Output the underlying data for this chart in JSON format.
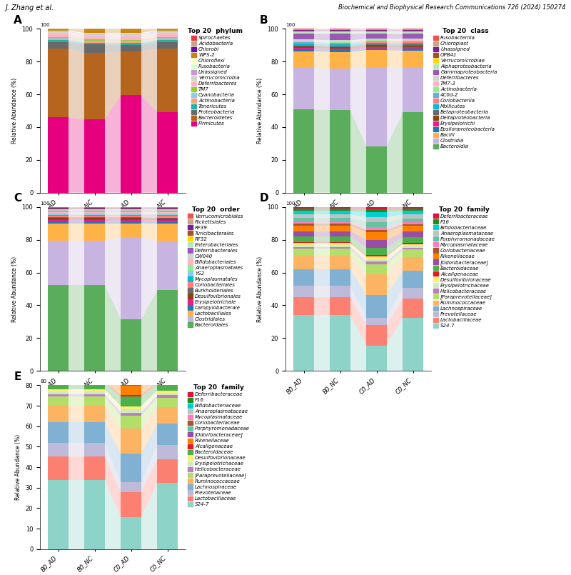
{
  "groups": [
    "B0_AD",
    "B0_NC",
    "C0_AD",
    "C0_NC"
  ],
  "header_left": "J. Zhang et al.",
  "header_right": "Biochemical and Biophysical Research Communications 726 (2024) 150274",
  "phylum_names": [
    "Firmicutes",
    "Bacteroidetes",
    "Proteobacteria",
    "Tenericutes",
    "Actinobacteria",
    "Cyanobacteria",
    "TM7",
    "Deferribacteres",
    "Verrucomicrobia",
    "Unassigned",
    "Fusobacteria",
    "Chioroflexi",
    "WPS-2",
    "Chiorobi",
    "Acidobacteria",
    "Spirochaetes"
  ],
  "phylum_colors": [
    "#e6007e",
    "#b5651d",
    "#696969",
    "#20b2aa",
    "#ffa07a",
    "#87ceeb",
    "#9acd32",
    "#ffb6c1",
    "#d3d3d3",
    "#cc99cc",
    "#d3ffd3",
    "#fffacd",
    "#c8860a",
    "#6a0dad",
    "#c8a882",
    "#e63946"
  ],
  "phylum_vals": {
    "B0_AD": [
      46,
      42,
      4,
      1,
      1,
      0.5,
      0.5,
      2,
      1,
      0.5,
      0.3,
      0.2,
      0.5,
      0.1,
      0.3,
      0.1
    ],
    "B0_NC": [
      44,
      40,
      5,
      1,
      1,
      0.5,
      0.5,
      2,
      1,
      0.5,
      0.3,
      0.2,
      2,
      0.1,
      0.3,
      0.1
    ],
    "C0_AD": [
      58,
      26,
      4,
      1,
      1,
      0.5,
      0.5,
      2,
      1,
      0.5,
      0.3,
      0.2,
      2,
      0.1,
      0.3,
      0.1
    ],
    "C0_NC": [
      49,
      39,
      4,
      1,
      1,
      0.5,
      0.5,
      2,
      1,
      0.5,
      0.3,
      0.2,
      0.5,
      0.1,
      0.3,
      0.1
    ]
  },
  "class_names": [
    "Bacteroidia",
    "Clostridia",
    "Bacilli",
    "Epsilonproteobacteria",
    "Erysipeloirichi",
    "Deltaproteobacteria",
    "Betaproteobacteria",
    "Mollicutes",
    "Coriobacteriia",
    "4C0d-2",
    "Actinobacteria",
    "TM7-3",
    "Deferribacteres",
    "Gammaproteobacteria",
    "Alphaproteobacteria",
    "Verrucomicrobiae",
    "OPB41",
    "Unassigned",
    "Chloroplast",
    "Fusobacterilia"
  ],
  "class_colors": [
    "#5aad5a",
    "#c8b4e0",
    "#ffb347",
    "#1f77b4",
    "#e91e8c",
    "#8b4513",
    "#696969",
    "#00bcd4",
    "#ff7f7f",
    "#6baed6",
    "#90ee90",
    "#ffb6c1",
    "#d3d3d3",
    "#9b59b6",
    "#b5e8b5",
    "#ffd700",
    "#a0522d",
    "#7b1fa2",
    "#c8a882",
    "#ef5350"
  ],
  "class_vals": {
    "B0_AD": [
      50,
      25,
      10,
      1,
      1,
      1,
      0.5,
      1,
      0.5,
      0.5,
      0.5,
      0.5,
      0.5,
      3.5,
      1,
      0.5,
      0.3,
      0.3,
      0.5,
      0.4
    ],
    "B0_NC": [
      50,
      25,
      10,
      1,
      1,
      1,
      0.5,
      1,
      0.5,
      0.5,
      0.5,
      0.5,
      0.5,
      4,
      1,
      0.5,
      0.3,
      0.3,
      0.5,
      0.4
    ],
    "C0_AD": [
      28,
      48,
      10,
      1,
      1,
      1,
      0.5,
      1,
      0.5,
      0.5,
      0.5,
      0.5,
      0.5,
      3,
      1,
      0.5,
      0.3,
      0.3,
      0.5,
      0.4
    ],
    "C0_NC": [
      48,
      27,
      10,
      1,
      1,
      1,
      0.5,
      1,
      0.5,
      0.5,
      0.5,
      0.5,
      0.5,
      3,
      1,
      0.5,
      0.3,
      0.3,
      0.5,
      0.4
    ]
  },
  "order_names": [
    "Bacteroidales",
    "Clostridiales",
    "Lactobacillales",
    "Campylobacterale",
    "Erysipelotrichale",
    "Desulfovibrionales",
    "Burkholderiales",
    "Coriobacteriales",
    "Mycoplasmatales",
    "YS2",
    "Anaeroplasmatales",
    "Bifidobacteriales",
    "CW040",
    "Deferribacterales",
    "Enterobacteriales",
    "RF32",
    "Turicibacterales",
    "RF39",
    "Rickettsiales",
    "Verrucomicrobiales"
  ],
  "order_colors": [
    "#5aad5a",
    "#c8b4e0",
    "#ffb347",
    "#1f77b4",
    "#e91e8c",
    "#8b4513",
    "#696969",
    "#ff7f7f",
    "#00bcd4",
    "#87ceeb",
    "#90ee90",
    "#ffb6c1",
    "#d3d3d3",
    "#9b59b6",
    "#b5e8b5",
    "#ffd700",
    "#a0522d",
    "#7b1fa2",
    "#c8a882",
    "#ef5350"
  ],
  "order_vals": {
    "B0_AD": [
      50,
      26,
      10,
      1,
      1,
      1,
      0.5,
      1,
      0.5,
      0.5,
      0.5,
      0.5,
      0.5,
      0.5,
      0.5,
      0.3,
      0.3,
      0.3,
      0.3,
      0.3
    ],
    "B0_NC": [
      50,
      26,
      10,
      1,
      1,
      1,
      0.5,
      1,
      0.5,
      0.5,
      0.5,
      0.5,
      0.5,
      0.5,
      0.5,
      0.3,
      0.3,
      0.3,
      0.3,
      0.3
    ],
    "C0_AD": [
      30,
      48,
      8,
      1,
      1,
      1,
      0.5,
      1,
      0.5,
      0.5,
      0.5,
      0.5,
      0.5,
      0.5,
      0.5,
      0.3,
      0.3,
      0.3,
      0.3,
      0.3
    ],
    "C0_NC": [
      46,
      28,
      10,
      1,
      1,
      1,
      0.5,
      1,
      0.5,
      0.5,
      0.5,
      0.5,
      0.5,
      0.5,
      0.5,
      0.3,
      0.3,
      0.3,
      0.3,
      0.3
    ]
  },
  "familyD_names": [
    "S24-7",
    "Lactobacillaceae",
    "Prevotellaceae",
    "Lachnospiraceae",
    "Ruminococcaceae",
    "[Paraprevotellaceae]",
    "Helicobacteraceae",
    "Erysipelotrichaceae",
    "Desulfovibrionaceae",
    "Alcaligenaceae",
    "Bacteroidaceae",
    "[Odoribacteraceae]",
    "Rikenellaceae",
    "Coriobacteriaceae",
    "Mycoplasmataceae",
    "Porphyromonadaceae",
    "Anaeroplasmataceae",
    "Bifidobacteriaceae",
    "F16",
    "Deferribacteraceae"
  ],
  "familyD_colors": [
    "#8dd3c7",
    "#fb8072",
    "#bebada",
    "#80b1d3",
    "#fdb462",
    "#b3de69",
    "#bc80bd",
    "#ccebc5",
    "#ffed6f",
    "#e41a1c",
    "#4daf4a",
    "#984ea3",
    "#ff7f00",
    "#a65628",
    "#f781bf",
    "#66c2a5",
    "#c0c0c0",
    "#00ced1",
    "#228b22",
    "#dc143c"
  ],
  "familyD_vals": {
    "B0_AD": [
      30,
      10,
      6,
      9,
      7,
      4,
      1,
      1,
      1,
      0.5,
      3,
      3,
      3,
      1,
      1,
      2,
      2,
      2,
      1,
      1
    ],
    "B0_NC": [
      30,
      10,
      6,
      9,
      7,
      4,
      1,
      1,
      1,
      0.5,
      3,
      3,
      3,
      1,
      1,
      2,
      2,
      2,
      1,
      1
    ],
    "C0_AD": [
      10,
      8,
      3,
      9,
      8,
      4,
      1,
      1,
      1,
      0.5,
      3,
      3,
      3,
      1,
      1,
      2,
      2,
      2,
      1,
      1
    ],
    "C0_NC": [
      28,
      10,
      6,
      9,
      7,
      4,
      1,
      1,
      1,
      0.5,
      3,
      3,
      3,
      1,
      1,
      2,
      2,
      2,
      1,
      1
    ]
  },
  "familyE_names": [
    "Deferribacteraceae",
    "F16",
    "Bifidobacteriaceae",
    "Anaeroplasmataceae",
    "Mycoplasmataceae",
    "Coriobacteriaceae",
    "Porphyromonadaceae",
    "[Odoribacteraceae]",
    "Rikenellaceae",
    "Alcaligenaceae",
    "Bacteroidaceae",
    "Desulfovibrionaceae",
    "Erysipelotrichaceae",
    "Helicobacteraceae",
    "[Paraprevotellaceae]",
    "Ruminococcaceae",
    "Lachnospiraceae",
    "Prevotellaceae",
    "Lactobacillaceae",
    "S24-7"
  ],
  "familyE_colors": [
    "#dc143c",
    "#228b22",
    "#00ced1",
    "#c0c0c0",
    "#f781bf",
    "#a65628",
    "#66c2a5",
    "#984ea3",
    "#ff7f00",
    "#e41a1c",
    "#4daf4a",
    "#ffed6f",
    "#ccebc5",
    "#bc80bd",
    "#b3de69",
    "#fdb462",
    "#80b1d3",
    "#bebada",
    "#fb8072",
    "#8dd3c7"
  ],
  "familyE_vals": {
    "B0_AD": [
      1,
      1,
      2,
      2,
      1,
      1,
      2,
      3,
      3,
      0.5,
      3,
      1,
      1,
      1,
      4,
      7,
      9,
      6,
      10,
      30
    ],
    "B0_NC": [
      1,
      1,
      2,
      2,
      1,
      1,
      2,
      3,
      3,
      0.5,
      3,
      1,
      1,
      1,
      4,
      7,
      9,
      6,
      10,
      30
    ],
    "C0_AD": [
      1,
      1,
      2,
      2,
      1,
      1,
      2,
      3,
      3,
      0.5,
      3,
      1,
      1,
      1,
      4,
      8,
      9,
      3,
      8,
      10
    ],
    "C0_NC": [
      1,
      1,
      2,
      2,
      1,
      1,
      2,
      3,
      3,
      0.5,
      3,
      1,
      1,
      1,
      4,
      7,
      9,
      6,
      10,
      28
    ]
  }
}
